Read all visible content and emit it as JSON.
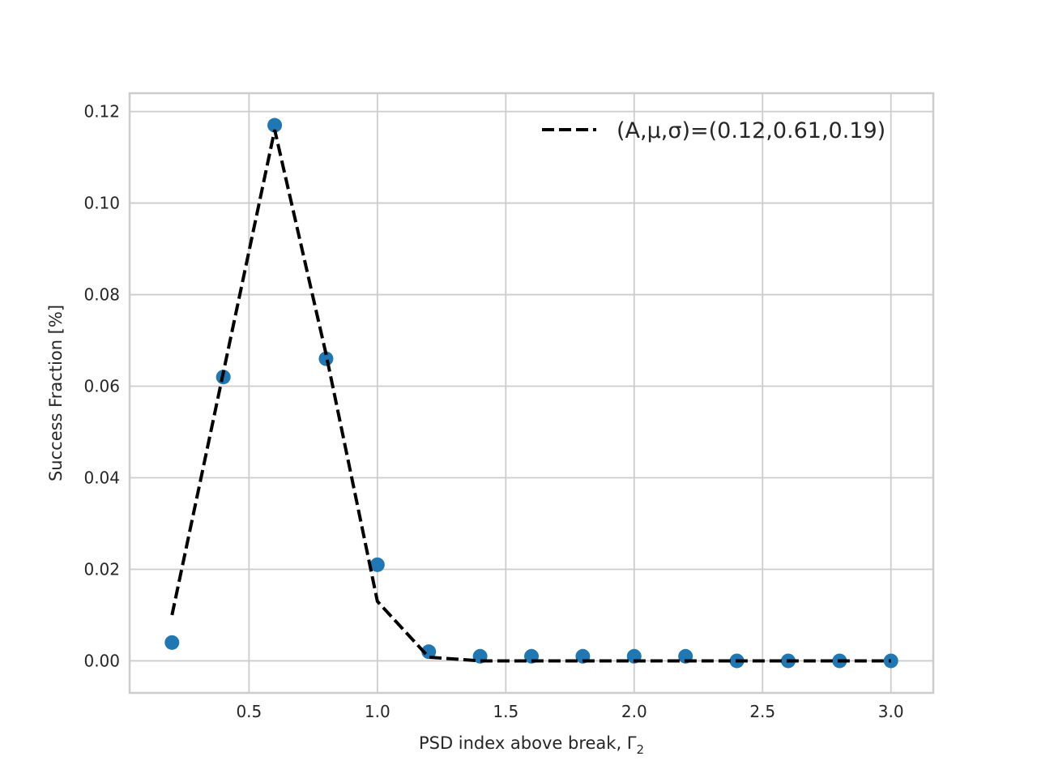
{
  "chart_data": {
    "type": "scatter",
    "xlabel": "PSD index above break, Γ",
    "xlabel_subscript": "2",
    "ylabel": "Success Fraction [%]",
    "xlim": [
      0.035,
      3.165
    ],
    "ylim": [
      -0.007,
      0.124
    ],
    "xticks": [
      0.5,
      1.0,
      1.5,
      2.0,
      2.5,
      3.0
    ],
    "xtick_labels": [
      "0.5",
      "1.0",
      "1.5",
      "2.0",
      "2.5",
      "3.0"
    ],
    "yticks": [
      0.0,
      0.02,
      0.04,
      0.06,
      0.08,
      0.1,
      0.12
    ],
    "ytick_labels": [
      "0.00",
      "0.02",
      "0.04",
      "0.06",
      "0.08",
      "0.10",
      "0.12"
    ],
    "grid": true,
    "legend_position": "top-right",
    "series": [
      {
        "kind": "scatter",
        "color": "#1f77b4",
        "x": [
          0.2,
          0.4,
          0.6,
          0.8,
          1.0,
          1.2,
          1.4,
          1.6,
          1.8,
          2.0,
          2.2,
          2.4,
          2.6,
          2.8,
          3.0
        ],
        "y": [
          0.004,
          0.062,
          0.117,
          0.066,
          0.021,
          0.002,
          0.001,
          0.001,
          0.001,
          0.001,
          0.001,
          0.0,
          0.0,
          0.0,
          0.0
        ]
      },
      {
        "kind": "line",
        "style": "dashed",
        "color": "#000000",
        "name": "(A,μ,σ)=(0.12,0.61,0.19)",
        "x": [
          0.2,
          0.4,
          0.6,
          0.8,
          1.0,
          1.2,
          1.4,
          1.6,
          1.8,
          2.0,
          2.2,
          2.4,
          2.6,
          2.8,
          3.0
        ],
        "y": [
          0.01,
          0.063,
          0.116,
          0.067,
          0.013,
          0.0008,
          0.0,
          0.0,
          0.0,
          0.0,
          0.0,
          0.0,
          0.0,
          0.0,
          0.0
        ]
      }
    ]
  }
}
